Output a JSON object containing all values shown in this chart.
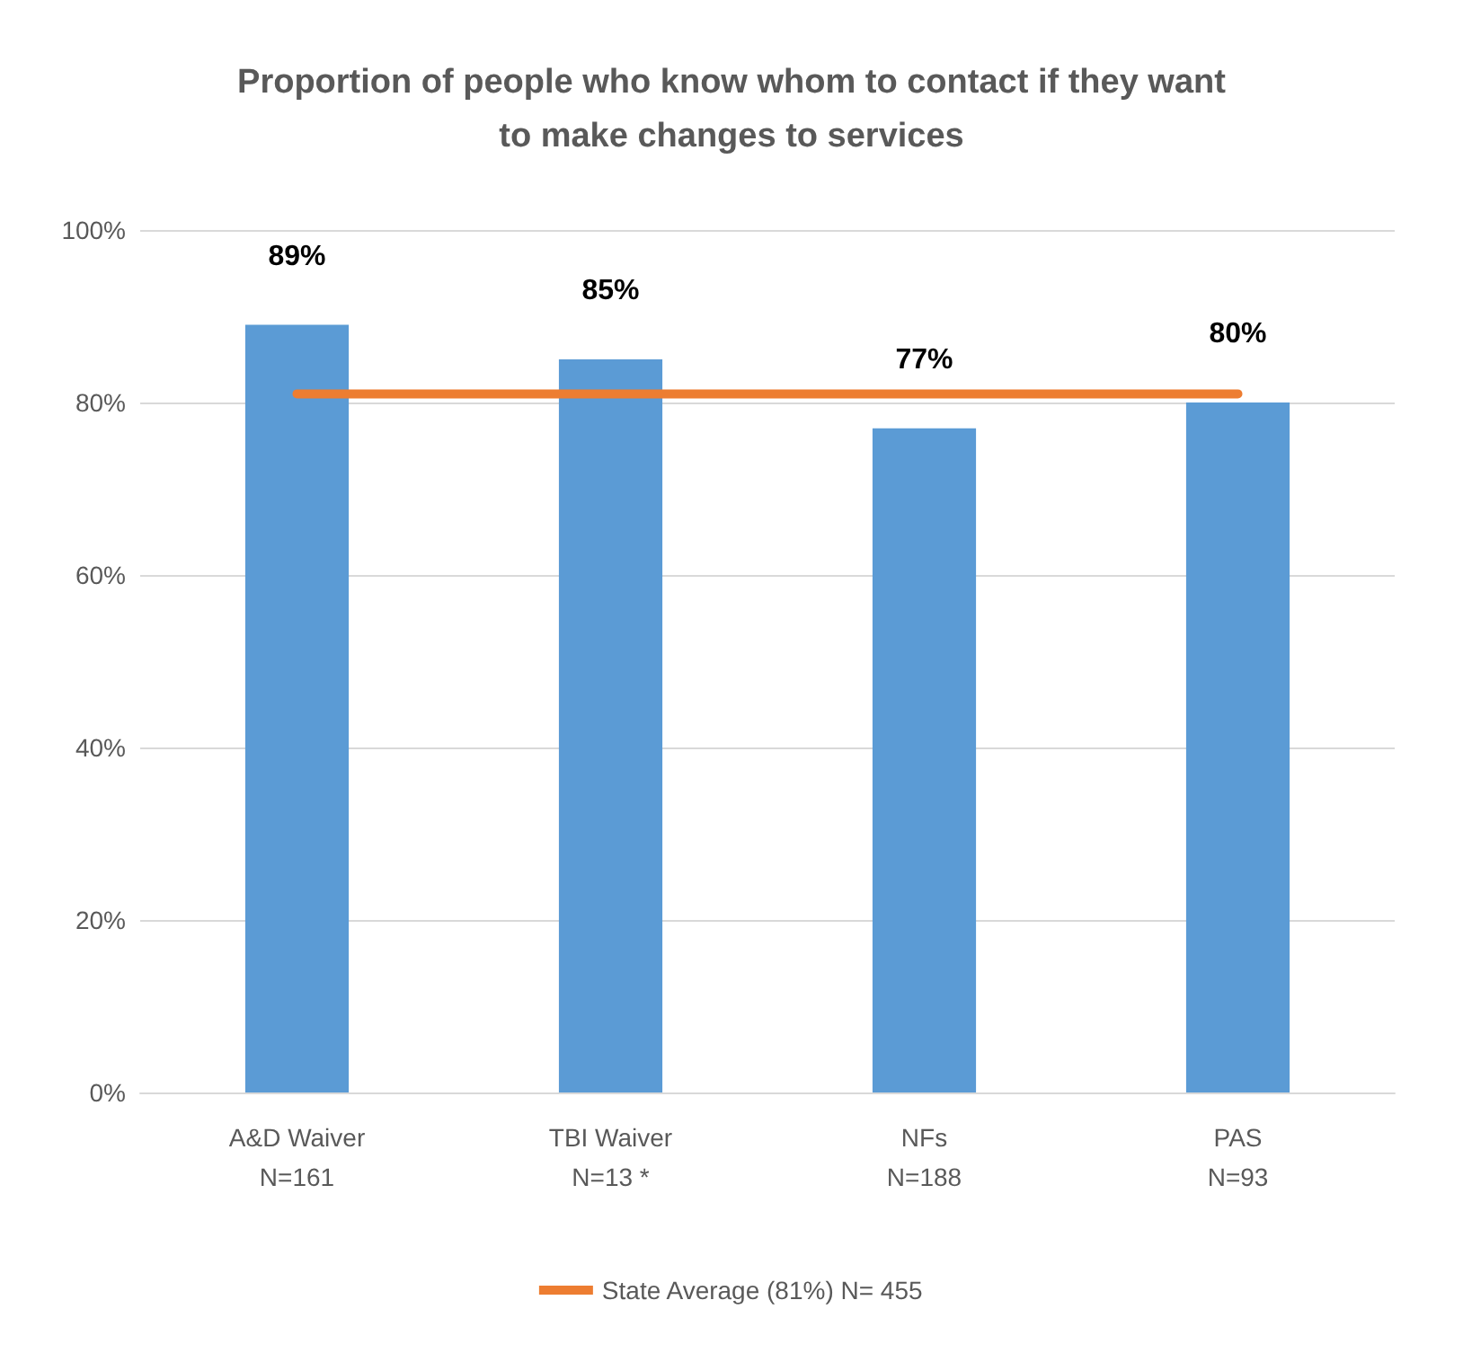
{
  "chart_data": {
    "type": "bar",
    "title": "Proportion of people who know whom to contact if they want\nto make changes to services",
    "categories": [
      "A&D Waiver\nN=161",
      "TBI Waiver\nN=13 *",
      "NFs\nN=188",
      "PAS\nN=93"
    ],
    "series": [
      {
        "color": "#5b9bd5",
        "values": [
          89,
          85,
          77,
          80
        ],
        "value_labels": [
          "89%",
          "85%",
          "77%",
          "80%"
        ]
      },
      {
        "type": "line",
        "name": "State Average (81%) N= 455",
        "color": "#ed7d31",
        "values": [
          81,
          81,
          81,
          81
        ],
        "marker": "none"
      }
    ],
    "ylim": [
      0,
      100
    ],
    "yticks": [
      {
        "value": 0,
        "label": "0%"
      },
      {
        "value": 20,
        "label": "20%"
      },
      {
        "value": 40,
        "label": "40%"
      },
      {
        "value": 60,
        "label": "60%"
      },
      {
        "value": 80,
        "label": "80%"
      },
      {
        "value": 100,
        "label": "100%"
      }
    ],
    "grid": "y",
    "legend": "bottom"
  }
}
